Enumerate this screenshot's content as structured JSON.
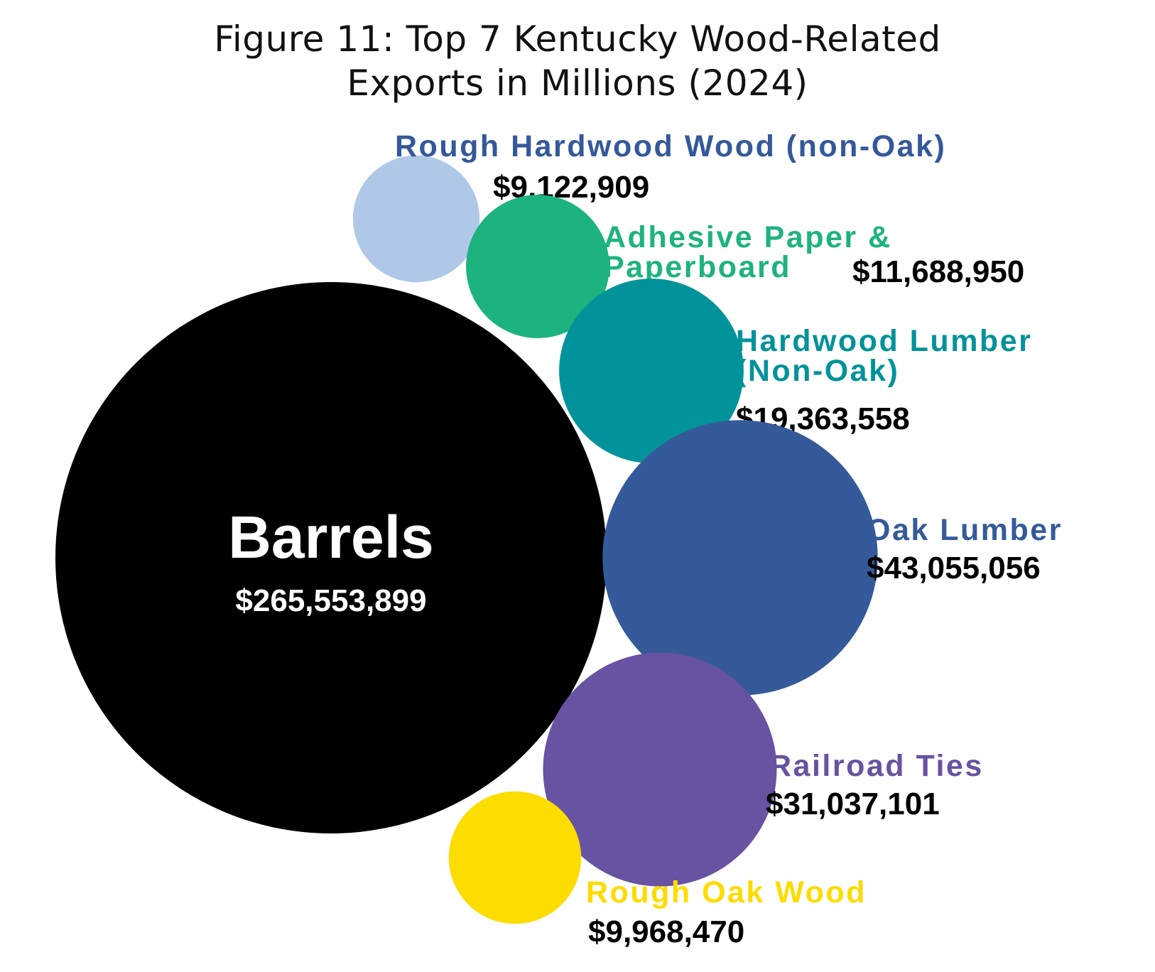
{
  "chart_data": {
    "type": "bubble",
    "title_lines": [
      "Figure 11: Top 7 Kentucky Wood-Related",
      "Exports in Millions (2024)"
    ],
    "items": [
      {
        "id": "barrels",
        "label_lines": [
          "Barrels"
        ],
        "value": 265553899,
        "value_label": "$265,553,899",
        "color": "#000000",
        "label_color": "#ffffff",
        "value_color": "#ffffff"
      },
      {
        "id": "rough-hardwood-non-oak",
        "label_lines": [
          "Rough Hardwood Wood (non-Oak)"
        ],
        "value": 9122909,
        "value_label": "$9,122,909",
        "color": "#b0c8e8",
        "label_color": "#34589a",
        "value_color": "#000000"
      },
      {
        "id": "adhesive-paper",
        "label_lines": [
          "Adhesive Paper &",
          "Paperboard"
        ],
        "value": 11688950,
        "value_label": "$11,688,950",
        "color": "#1db37f",
        "label_color": "#1db37f",
        "value_color": "#000000"
      },
      {
        "id": "hardwood-lumber-non-oak",
        "label_lines": [
          "Hardwood Lumber",
          "(Non-Oak)"
        ],
        "value": 19363558,
        "value_label": "$19,363,558",
        "color": "#02939a",
        "label_color": "#02939a",
        "value_color": "#000000"
      },
      {
        "id": "oak-lumber",
        "label_lines": [
          "Oak Lumber"
        ],
        "value": 43055056,
        "value_label": "$43,055,056",
        "color": "#345a9a",
        "label_color": "#345a9a",
        "value_color": "#000000"
      },
      {
        "id": "railroad-ties",
        "label_lines": [
          "Railroad Ties"
        ],
        "value": 31037101,
        "value_label": "$31,037,101",
        "color": "#6852a2",
        "label_color": "#6852a2",
        "value_color": "#000000"
      },
      {
        "id": "rough-oak-wood",
        "label_lines": [
          "Rough Oak Wood"
        ],
        "value": 9968470,
        "value_label": "$9,968,470",
        "color": "#fddc00",
        "label_color": "#fddc00",
        "value_color": "#000000"
      }
    ]
  }
}
